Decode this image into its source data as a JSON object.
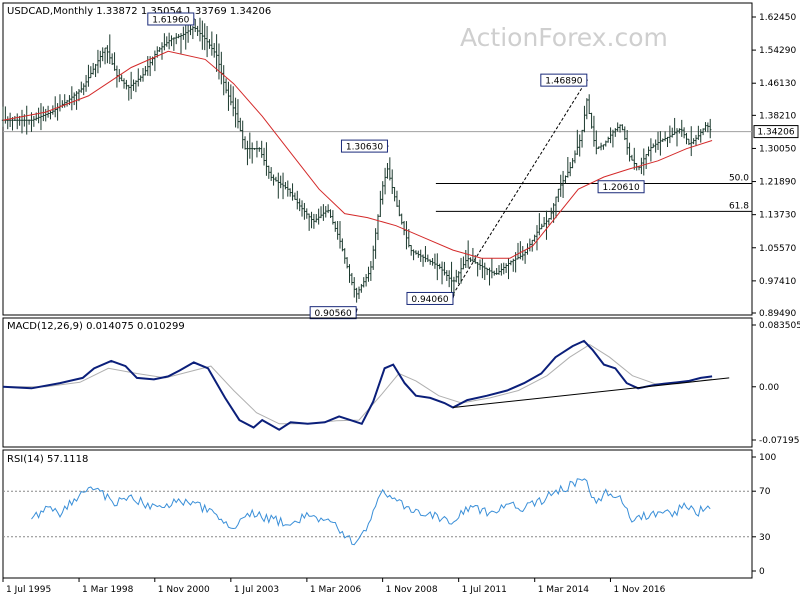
{
  "watermark": "ActionForex.com",
  "chart_data": [
    {
      "type": "candlestick",
      "panel": "price",
      "title": "USDCAD,Monthly 1.33872 1.35054 1.33769 1.34206",
      "x_ticks": [
        "1 Jul 1995",
        "1 Mar 1998",
        "1 Nov 2000",
        "1 Jul 2003",
        "1 Mar 2006",
        "1 Nov 2008",
        "1 Jul 2011",
        "1 Mar 2014",
        "1 Nov 2016"
      ],
      "y_ticks": [
        "1.62450",
        "1.54290",
        "1.46130",
        "1.38210",
        "1.30050",
        "1.21890",
        "1.13730",
        "1.05570",
        "0.97410",
        "0.89490"
      ],
      "ylim": [
        0.8949,
        1.6245
      ],
      "current_price": "1.34206",
      "current_value": 1.34206,
      "price_path": [
        [
          1995.5,
          1.37
        ],
        [
          1996.5,
          1.37
        ],
        [
          1997.2,
          1.39
        ],
        [
          1997.8,
          1.42
        ],
        [
          1998.3,
          1.45
        ],
        [
          1998.7,
          1.5
        ],
        [
          1999.1,
          1.55
        ],
        [
          1999.5,
          1.48
        ],
        [
          1999.9,
          1.45
        ],
        [
          2000.4,
          1.48
        ],
        [
          2000.9,
          1.54
        ],
        [
          2001.4,
          1.57
        ],
        [
          2001.8,
          1.58
        ],
        [
          2002.2,
          1.6
        ],
        [
          2002.6,
          1.57
        ],
        [
          2003.0,
          1.53
        ],
        [
          2003.3,
          1.45
        ],
        [
          2003.7,
          1.38
        ],
        [
          2004.0,
          1.3
        ],
        [
          2004.5,
          1.3
        ],
        [
          2004.9,
          1.23
        ],
        [
          2005.5,
          1.2
        ],
        [
          2005.9,
          1.16
        ],
        [
          2006.4,
          1.12
        ],
        [
          2006.9,
          1.15
        ],
        [
          2007.3,
          1.08
        ],
        [
          2007.7,
          0.98
        ],
        [
          2007.9,
          0.94
        ],
        [
          2008.4,
          1.0
        ],
        [
          2008.8,
          1.2
        ],
        [
          2009.0,
          1.25
        ],
        [
          2009.4,
          1.14
        ],
        [
          2009.8,
          1.05
        ],
        [
          2010.3,
          1.03
        ],
        [
          2010.8,
          1.01
        ],
        [
          2011.3,
          0.97
        ],
        [
          2011.8,
          1.03
        ],
        [
          2012.3,
          1.01
        ],
        [
          2012.8,
          0.99
        ],
        [
          2013.3,
          1.02
        ],
        [
          2013.8,
          1.04
        ],
        [
          2014.3,
          1.1
        ],
        [
          2014.7,
          1.13
        ],
        [
          2015.0,
          1.2
        ],
        [
          2015.4,
          1.25
        ],
        [
          2015.8,
          1.33
        ],
        [
          2016.0,
          1.42
        ],
        [
          2016.3,
          1.3
        ],
        [
          2016.6,
          1.31
        ],
        [
          2016.9,
          1.34
        ],
        [
          2017.2,
          1.36
        ],
        [
          2017.5,
          1.28
        ],
        [
          2017.8,
          1.25
        ],
        [
          2018.2,
          1.3
        ],
        [
          2018.6,
          1.32
        ],
        [
          2018.9,
          1.33
        ],
        [
          2019.3,
          1.35
        ],
        [
          2019.6,
          1.31
        ],
        [
          2019.9,
          1.33
        ],
        [
          2020.2,
          1.36
        ],
        [
          2020.4,
          1.34
        ]
      ],
      "moving_average": [
        [
          1995.5,
          1.37
        ],
        [
          1997.0,
          1.39
        ],
        [
          1998.5,
          1.43
        ],
        [
          2000.0,
          1.5
        ],
        [
          2001.3,
          1.54
        ],
        [
          2002.6,
          1.52
        ],
        [
          2003.6,
          1.46
        ],
        [
          2004.6,
          1.38
        ],
        [
          2005.6,
          1.29
        ],
        [
          2006.6,
          1.2
        ],
        [
          2007.5,
          1.14
        ],
        [
          2008.3,
          1.13
        ],
        [
          2009.3,
          1.11
        ],
        [
          2010.3,
          1.08
        ],
        [
          2011.3,
          1.05
        ],
        [
          2012.3,
          1.03
        ],
        [
          2013.3,
          1.03
        ],
        [
          2014.1,
          1.06
        ],
        [
          2014.9,
          1.13
        ],
        [
          2015.7,
          1.2
        ],
        [
          2016.6,
          1.23
        ],
        [
          2017.5,
          1.25
        ],
        [
          2018.5,
          1.27
        ],
        [
          2019.5,
          1.3
        ],
        [
          2020.4,
          1.32
        ]
      ],
      "annotations": [
        {
          "label": "1.61960",
          "x": 2002.2,
          "y": 1.6196
        },
        {
          "label": "0.90560",
          "x": 2007.9,
          "y": 0.9056
        },
        {
          "label": "1.30630",
          "x": 2009.0,
          "y": 1.3063
        },
        {
          "label": "0.94060",
          "x": 2011.3,
          "y": 0.9406
        },
        {
          "label": "1.46890",
          "x": 2016.0,
          "y": 1.4689
        },
        {
          "label": "1.20610",
          "x": 2017.8,
          "y": 1.2061
        }
      ],
      "trendline": [
        [
          2011.3,
          0.9406
        ],
        [
          2016.0,
          1.4689
        ]
      ],
      "fib_levels": [
        {
          "label": "50.0",
          "value": 1.2141
        },
        {
          "label": "61.8",
          "value": 1.1455
        }
      ]
    },
    {
      "type": "line",
      "panel": "macd",
      "title": "MACD(12,26,9) 0.014075 0.010299",
      "y_ticks": [
        "0.083505",
        "0.00",
        "-0.07195"
      ],
      "ylim": [
        -0.07195,
        0.083505
      ],
      "current_value": 0.014075,
      "series": [
        {
          "values": [
            [
              1995.5,
              0.0
            ],
            [
              1996.5,
              -0.002
            ],
            [
              1997.5,
              0.005
            ],
            [
              1998.3,
              0.012
            ],
            [
              1998.7,
              0.025
            ],
            [
              1999.3,
              0.035
            ],
            [
              1999.8,
              0.028
            ],
            [
              2000.2,
              0.012
            ],
            [
              2000.8,
              0.01
            ],
            [
              2001.3,
              0.014
            ],
            [
              2001.7,
              0.022
            ],
            [
              2002.2,
              0.033
            ],
            [
              2002.7,
              0.025
            ],
            [
              2003.3,
              -0.015
            ],
            [
              2003.8,
              -0.045
            ],
            [
              2004.3,
              -0.055
            ],
            [
              2004.6,
              -0.045
            ],
            [
              2005.2,
              -0.058
            ],
            [
              2005.6,
              -0.048
            ],
            [
              2006.2,
              -0.05
            ],
            [
              2006.8,
              -0.048
            ],
            [
              2007.3,
              -0.04
            ],
            [
              2007.7,
              -0.045
            ],
            [
              2008.1,
              -0.05
            ],
            [
              2008.5,
              -0.02
            ],
            [
              2008.9,
              0.025
            ],
            [
              2009.2,
              0.03
            ],
            [
              2009.6,
              0.005
            ],
            [
              2010.0,
              -0.012
            ],
            [
              2010.5,
              -0.015
            ],
            [
              2011.0,
              -0.022
            ],
            [
              2011.3,
              -0.028
            ],
            [
              2011.8,
              -0.018
            ],
            [
              2012.5,
              -0.012
            ],
            [
              2013.2,
              -0.005
            ],
            [
              2013.8,
              0.005
            ],
            [
              2014.4,
              0.018
            ],
            [
              2014.9,
              0.04
            ],
            [
              2015.5,
              0.055
            ],
            [
              2015.9,
              0.062
            ],
            [
              2016.2,
              0.05
            ],
            [
              2016.6,
              0.03
            ],
            [
              2017.0,
              0.025
            ],
            [
              2017.4,
              0.005
            ],
            [
              2017.8,
              -0.002
            ],
            [
              2018.3,
              0.002
            ],
            [
              2018.7,
              0.004
            ],
            [
              2019.2,
              0.006
            ],
            [
              2019.6,
              0.008
            ],
            [
              2020.0,
              0.012
            ],
            [
              2020.4,
              0.014075
            ]
          ]
        },
        {
          "values": [
            [
              1995.5,
              0.0
            ],
            [
              1997.0,
              0.0
            ],
            [
              1998.2,
              0.006
            ],
            [
              1999.2,
              0.025
            ],
            [
              2000.2,
              0.018
            ],
            [
              2001.2,
              0.012
            ],
            [
              2002.0,
              0.02
            ],
            [
              2002.8,
              0.028
            ],
            [
              2003.6,
              -0.005
            ],
            [
              2004.4,
              -0.035
            ],
            [
              2005.2,
              -0.05
            ],
            [
              2006.2,
              -0.05
            ],
            [
              2007.2,
              -0.046
            ],
            [
              2008.0,
              -0.045
            ],
            [
              2008.8,
              -0.01
            ],
            [
              2009.4,
              0.018
            ],
            [
              2010.0,
              0.008
            ],
            [
              2010.8,
              -0.012
            ],
            [
              2011.6,
              -0.022
            ],
            [
              2012.6,
              -0.015
            ],
            [
              2013.6,
              -0.005
            ],
            [
              2014.6,
              0.015
            ],
            [
              2015.4,
              0.04
            ],
            [
              2016.1,
              0.057
            ],
            [
              2016.8,
              0.04
            ],
            [
              2017.6,
              0.015
            ],
            [
              2018.4,
              0.004
            ],
            [
              2019.2,
              0.004
            ],
            [
              2020.4,
              0.010299
            ]
          ]
        }
      ],
      "trendline": [
        [
          2011.3,
          -0.028
        ],
        [
          2021.0,
          0.012
        ]
      ]
    },
    {
      "type": "line",
      "panel": "rsi",
      "title": "RSI(14) 57.1118",
      "y_ticks": [
        "100",
        "70",
        "30",
        "0"
      ],
      "ylim": [
        0,
        100
      ],
      "guides": [
        70,
        30
      ],
      "current_value": 57.1118,
      "series": [
        {
          "values": [
            [
              1996.5,
              45
            ],
            [
              1997.0,
              55
            ],
            [
              1997.5,
              50
            ],
            [
              1998.0,
              62
            ],
            [
              1998.5,
              75
            ],
            [
              1998.9,
              68
            ],
            [
              1999.5,
              60
            ],
            [
              2000.0,
              65
            ],
            [
              2000.8,
              55
            ],
            [
              2001.5,
              60
            ],
            [
              2002.0,
              62
            ],
            [
              2002.5,
              55
            ],
            [
              2003.0,
              48
            ],
            [
              2003.5,
              35
            ],
            [
              2004.2,
              50
            ],
            [
              2005.0,
              45
            ],
            [
              2005.6,
              40
            ],
            [
              2006.2,
              50
            ],
            [
              2006.8,
              45
            ],
            [
              2007.4,
              35
            ],
            [
              2007.8,
              25
            ],
            [
              2008.3,
              40
            ],
            [
              2008.8,
              70
            ],
            [
              2009.3,
              62
            ],
            [
              2009.8,
              55
            ],
            [
              2010.5,
              50
            ],
            [
              2011.3,
              42
            ],
            [
              2011.8,
              55
            ],
            [
              2012.5,
              52
            ],
            [
              2013.2,
              58
            ],
            [
              2013.8,
              55
            ],
            [
              2014.4,
              62
            ],
            [
              2014.9,
              70
            ],
            [
              2015.4,
              75
            ],
            [
              2015.9,
              80
            ],
            [
              2016.3,
              62
            ],
            [
              2016.8,
              70
            ],
            [
              2017.2,
              65
            ],
            [
              2017.6,
              45
            ],
            [
              2018.0,
              48
            ],
            [
              2018.5,
              52
            ],
            [
              2019.0,
              50
            ],
            [
              2019.5,
              58
            ],
            [
              2019.9,
              52
            ],
            [
              2020.4,
              57.1
            ]
          ]
        }
      ]
    }
  ]
}
